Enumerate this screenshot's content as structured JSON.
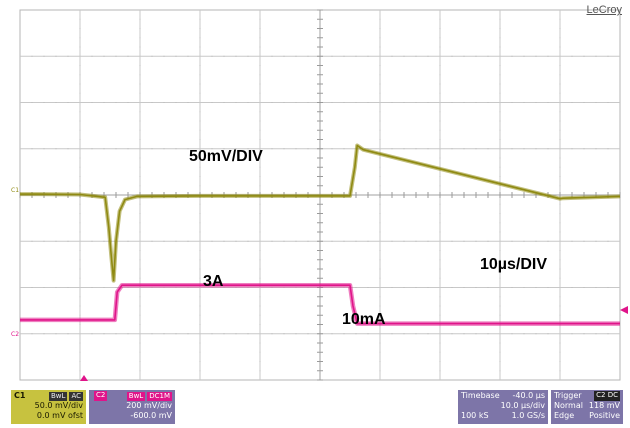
{
  "brand": "LeCroy",
  "annotations": {
    "top_scale": "50mV/DIV",
    "time_scale": "10µs/DIV",
    "high_current": "3A",
    "low_current": "10mA"
  },
  "channel1": {
    "label": "C1",
    "tags": [
      "BwL",
      "AC"
    ],
    "vdiv": "50.0 mV/div",
    "offset": "0.0 mV ofst",
    "color": "#c7c23f",
    "trace_color": "#8f8a12"
  },
  "channel2": {
    "label": "C2",
    "tags": [
      "BwL",
      "DC1M"
    ],
    "vdiv": "200 mV/div",
    "offset": "-600.0 mV",
    "color": "#7d75a8",
    "trace_color": "#e0148a"
  },
  "timebase": {
    "label": "Timebase",
    "delay": "-40.0 µs",
    "tdiv": "10.0 µs/div",
    "samples": "100 kS",
    "rate": "1.0 GS/s"
  },
  "trigger": {
    "label": "Trigger",
    "source_tag": "C2 DC",
    "mode": "Normal",
    "level": "118 mV",
    "type": "Edge",
    "slope": "Positive"
  },
  "chart_data": {
    "type": "line",
    "grid": true,
    "x_divisions": 10,
    "y_divisions": 8,
    "x_range_div": [
      0,
      10
    ],
    "y_range_div": [
      0,
      8
    ],
    "series": [
      {
        "channel": "C1",
        "x": [
          0,
          0.3,
          1.0,
          1.42,
          1.48,
          1.52,
          1.56,
          1.6,
          1.66,
          1.75,
          1.95,
          3.0,
          5.0,
          5.5,
          5.58,
          5.62,
          5.72,
          9.0,
          9.05,
          10.0
        ],
        "y": [
          4.02,
          4.02,
          4.01,
          3.95,
          3.3,
          2.7,
          2.15,
          3.0,
          3.65,
          3.9,
          3.97,
          3.98,
          3.98,
          3.98,
          4.6,
          5.07,
          4.98,
          3.92,
          3.93,
          3.97
        ]
      },
      {
        "channel": "C2",
        "x": [
          0,
          1.58,
          1.62,
          1.7,
          5.5,
          5.55,
          5.62,
          10.0
        ],
        "y": [
          1.3,
          1.3,
          1.9,
          2.05,
          2.05,
          1.6,
          1.22,
          1.22
        ]
      }
    ]
  }
}
